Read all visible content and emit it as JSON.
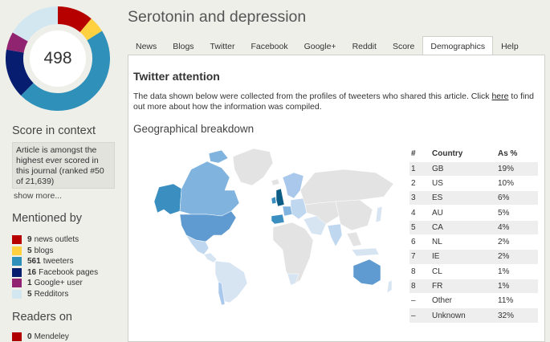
{
  "score": "498",
  "colors": {
    "news": "#b60000",
    "blogs": "#ffd140",
    "tweeters": "#2f90b9",
    "facebook": "#071d70",
    "googleplus": "#912470",
    "reddit": "#d3e7f1",
    "mendeley": "#b00000"
  },
  "sidebar": {
    "context_heading": "Score in context",
    "context_text": "Article is amongst the highest ever scored in this journal (ranked #50 of 21,639)",
    "show_more": "show more...",
    "mentioned_heading": "Mentioned by",
    "mentions": [
      {
        "count": "9",
        "label": "news outlets",
        "color": "#b60000"
      },
      {
        "count": "5",
        "label": "blogs",
        "color": "#ffd140"
      },
      {
        "count": "561",
        "label": "tweeters",
        "color": "#2f90b9"
      },
      {
        "count": "16",
        "label": "Facebook pages",
        "color": "#071d70"
      },
      {
        "count": "1",
        "label": "Google+ user",
        "color": "#912470"
      },
      {
        "count": "5",
        "label": "Redditors",
        "color": "#d3e7f1"
      }
    ],
    "readers_heading": "Readers on",
    "readers": {
      "count": "0",
      "label": "Mendeley"
    }
  },
  "header": {
    "title": "Serotonin and depression"
  },
  "tabs": [
    {
      "label": "News",
      "active": false
    },
    {
      "label": "Blogs",
      "active": false
    },
    {
      "label": "Twitter",
      "active": false
    },
    {
      "label": "Facebook",
      "active": false
    },
    {
      "label": "Google+",
      "active": false
    },
    {
      "label": "Reddit",
      "active": false
    },
    {
      "label": "Score",
      "active": false
    },
    {
      "label": "Demographics",
      "active": true
    },
    {
      "label": "Help",
      "active": false
    }
  ],
  "main": {
    "section_title": "Twitter attention",
    "intro_before": "The data shown below were collected from the profiles of tweeters who shared this article. Click ",
    "intro_link": "here",
    "intro_after": " to find out more about how the information was compiled.",
    "geo_title": "Geographical breakdown"
  },
  "geo_table": {
    "headers": [
      "#",
      "Country",
      "As %"
    ],
    "rows": [
      {
        "rank": "1",
        "country": "GB",
        "pct": "19%"
      },
      {
        "rank": "2",
        "country": "US",
        "pct": "10%"
      },
      {
        "rank": "3",
        "country": "ES",
        "pct": "6%"
      },
      {
        "rank": "4",
        "country": "AU",
        "pct": "5%"
      },
      {
        "rank": "5",
        "country": "CA",
        "pct": "4%"
      },
      {
        "rank": "6",
        "country": "NL",
        "pct": "2%"
      },
      {
        "rank": "7",
        "country": "IE",
        "pct": "2%"
      },
      {
        "rank": "8",
        "country": "CL",
        "pct": "1%"
      },
      {
        "rank": "8",
        "country": "FR",
        "pct": "1%"
      },
      {
        "rank": "–",
        "country": "Other",
        "pct": "11%"
      },
      {
        "rank": "–",
        "country": "Unknown",
        "pct": "32%"
      }
    ]
  }
}
